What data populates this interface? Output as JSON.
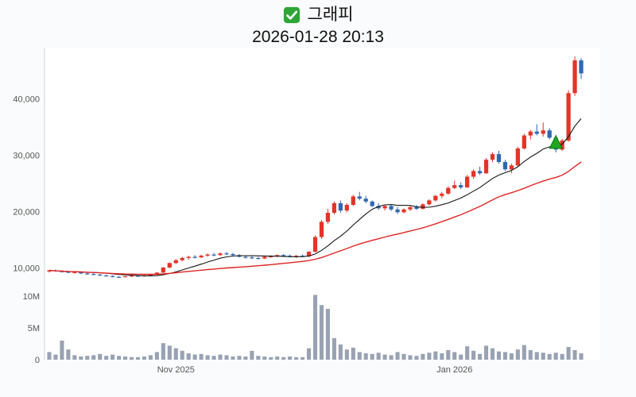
{
  "header": {
    "title": "그래피",
    "datetime": "2026-01-28 20:13",
    "checkbox_icon": "checked-green-checkbox"
  },
  "chart_data": {
    "type": "candlestick",
    "panels": [
      "price",
      "volume"
    ],
    "title": "그래피",
    "subtitle": "2026-01-28 20:13",
    "grid": "off",
    "legend": "none",
    "price_axis": {
      "range": [
        7000,
        48500
      ],
      "ticks": [
        {
          "value": 40000,
          "label": "40,000"
        },
        {
          "value": 30000,
          "label": "30,000"
        },
        {
          "value": 20000,
          "label": "20,000"
        },
        {
          "value": 10000,
          "label": "10,000"
        }
      ]
    },
    "volume_axis": {
      "max": 10.5,
      "unit": "M",
      "ticks": [
        {
          "value": 10,
          "label": "10M"
        },
        {
          "value": 5,
          "label": "5M"
        },
        {
          "value": 0,
          "label": "0"
        }
      ]
    },
    "x_axis": {
      "ticks": [
        {
          "index": 20,
          "label": "Nov 2025"
        },
        {
          "index": 64,
          "label": "Jan 2026"
        }
      ]
    },
    "candle_format": [
      "open",
      "high",
      "low",
      "close",
      "volume_millions"
    ],
    "candles": [
      [
        9400,
        9700,
        9200,
        9600,
        1.2
      ],
      [
        9600,
        9750,
        9350,
        9450,
        0.8
      ],
      [
        9450,
        9600,
        9250,
        9350,
        3.0
      ],
      [
        9350,
        9500,
        9100,
        9200,
        1.6
      ],
      [
        9200,
        9400,
        9000,
        9300,
        0.7
      ],
      [
        9300,
        9350,
        8950,
        9050,
        0.5
      ],
      [
        9050,
        9200,
        8850,
        8950,
        0.6
      ],
      [
        8950,
        9100,
        8750,
        8850,
        0.7
      ],
      [
        8850,
        8950,
        8600,
        8700,
        0.9
      ],
      [
        8700,
        8850,
        8500,
        8600,
        0.6
      ],
      [
        8600,
        8700,
        8350,
        8450,
        0.8
      ],
      [
        8450,
        8600,
        8300,
        8400,
        0.6
      ],
      [
        8400,
        8600,
        8350,
        8550,
        0.5
      ],
      [
        8550,
        8700,
        8450,
        8650,
        0.4
      ],
      [
        8650,
        8750,
        8500,
        8600,
        0.4
      ],
      [
        8600,
        8750,
        8500,
        8700,
        0.5
      ],
      [
        8700,
        8900,
        8600,
        8850,
        0.7
      ],
      [
        8850,
        9250,
        8800,
        9200,
        1.2
      ],
      [
        9200,
        10200,
        9150,
        10100,
        2.6
      ],
      [
        10100,
        11000,
        10000,
        10900,
        2.2
      ],
      [
        10900,
        11600,
        10700,
        11400,
        1.8
      ],
      [
        11400,
        12000,
        11200,
        11800,
        1.4
      ],
      [
        11800,
        12200,
        11500,
        12000,
        1.0
      ],
      [
        12000,
        12300,
        11700,
        11900,
        0.8
      ],
      [
        11900,
        12400,
        11800,
        12200,
        0.9
      ],
      [
        12200,
        12600,
        12000,
        12400,
        0.7
      ],
      [
        12400,
        12700,
        12100,
        12300,
        0.6
      ],
      [
        12300,
        12800,
        12200,
        12600,
        0.8
      ],
      [
        12600,
        12900,
        12300,
        12500,
        0.7
      ],
      [
        12500,
        12700,
        12100,
        12300,
        0.5
      ],
      [
        12300,
        12500,
        11900,
        12000,
        0.6
      ],
      [
        12000,
        12200,
        11700,
        11900,
        0.5
      ],
      [
        11900,
        12100,
        11600,
        11800,
        1.4
      ],
      [
        11800,
        12000,
        11500,
        11700,
        0.6
      ],
      [
        11700,
        12100,
        11600,
        12000,
        0.5
      ],
      [
        12000,
        12300,
        11800,
        12100,
        0.4
      ],
      [
        12100,
        12400,
        11900,
        12300,
        0.5
      ],
      [
        12300,
        12500,
        12000,
        12200,
        0.4
      ],
      [
        12200,
        12400,
        11900,
        12000,
        0.5
      ],
      [
        12000,
        12300,
        11800,
        12200,
        0.4
      ],
      [
        12200,
        12400,
        11950,
        12100,
        0.4
      ],
      [
        12100,
        13000,
        11950,
        12900,
        1.8
      ],
      [
        12900,
        15800,
        12800,
        15500,
        10.2
      ],
      [
        15500,
        18500,
        15200,
        18200,
        8.6
      ],
      [
        18200,
        20500,
        17800,
        19800,
        8.0
      ],
      [
        19800,
        21800,
        19500,
        21500,
        3.4
      ],
      [
        21500,
        22000,
        19800,
        20200,
        2.4
      ],
      [
        20200,
        21500,
        19900,
        21200,
        1.6
      ],
      [
        21200,
        23000,
        21000,
        22700,
        1.9
      ],
      [
        22700,
        23500,
        22000,
        22300,
        1.2
      ],
      [
        22300,
        22800,
        21500,
        21800,
        1.0
      ],
      [
        21800,
        22000,
        20800,
        21000,
        0.9
      ],
      [
        21000,
        21500,
        20300,
        20600,
        1.1
      ],
      [
        20600,
        21200,
        20200,
        21000,
        0.8
      ],
      [
        21000,
        21300,
        20100,
        20400,
        0.7
      ],
      [
        20400,
        20800,
        19600,
        19900,
        1.2
      ],
      [
        19900,
        20600,
        19700,
        20400,
        0.9
      ],
      [
        20400,
        21000,
        20100,
        20800,
        0.7
      ],
      [
        20800,
        21200,
        20300,
        20500,
        0.6
      ],
      [
        20500,
        21500,
        20400,
        21300,
        0.9
      ],
      [
        21300,
        22200,
        21100,
        22000,
        1.1
      ],
      [
        22000,
        23000,
        21800,
        22800,
        1.3
      ],
      [
        22800,
        23500,
        22400,
        23200,
        1.0
      ],
      [
        23200,
        24500,
        23000,
        24200,
        1.5
      ],
      [
        24200,
        25500,
        24000,
        24700,
        1.2
      ],
      [
        24700,
        25200,
        24000,
        24300,
        0.8
      ],
      [
        24300,
        26500,
        24200,
        26200,
        2.1
      ],
      [
        26200,
        27500,
        25800,
        27200,
        1.4
      ],
      [
        27200,
        28000,
        26500,
        26800,
        0.9
      ],
      [
        26800,
        29500,
        26700,
        29200,
        2.2
      ],
      [
        29200,
        30500,
        28800,
        30200,
        1.8
      ],
      [
        30200,
        30800,
        28500,
        28800,
        1.3
      ],
      [
        28800,
        29200,
        27200,
        27500,
        1.2
      ],
      [
        27500,
        28500,
        26800,
        28200,
        1.0
      ],
      [
        28200,
        31500,
        28000,
        31200,
        1.6
      ],
      [
        31200,
        33800,
        31000,
        33500,
        2.3
      ],
      [
        33500,
        34500,
        32800,
        34200,
        1.5
      ],
      [
        34200,
        35500,
        33500,
        33800,
        1.2
      ],
      [
        33800,
        35800,
        33300,
        34400,
        1.1
      ],
      [
        34400,
        34800,
        32800,
        33100,
        0.9
      ],
      [
        33100,
        33600,
        30500,
        31000,
        1.1
      ],
      [
        31000,
        32900,
        30800,
        32600,
        0.9
      ],
      [
        32600,
        41500,
        32400,
        41000,
        2.0
      ],
      [
        41000,
        47500,
        40500,
        46800,
        1.5
      ],
      [
        46800,
        47200,
        43500,
        44500,
        1.0
      ]
    ],
    "moving_averages": [
      {
        "name": "ma-short",
        "period": 10,
        "color": "#151515",
        "width": 1.1
      },
      {
        "name": "ma-long",
        "period": 30,
        "color": "#e02424",
        "width": 1.4
      }
    ],
    "marker": {
      "index": 80,
      "price": 32200,
      "shape": "triangle-up",
      "color": "#1fa51f",
      "stroke": "#0e7c12"
    },
    "colors": {
      "up": "#e33428",
      "down": "#2f67b3",
      "volume": "#98a2b3",
      "panel": "#ffffff",
      "axis_line": "#cfd4d9",
      "label": "#555555",
      "checkbox_green": "#2ea636"
    }
  }
}
